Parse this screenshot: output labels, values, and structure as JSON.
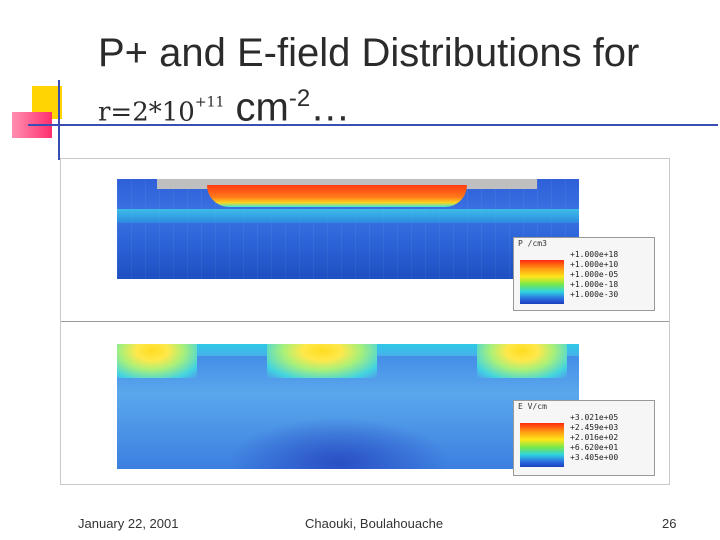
{
  "title": {
    "line1": "P+ and E-field Distributions for",
    "var": "r=2*10",
    "var_exp": "+11",
    "unit": "cm",
    "unit_exp": "-2",
    "ellipsis": "…"
  },
  "figure": {
    "legend_p": {
      "unit": "P /cm3",
      "labels": [
        "+1.000e+18",
        "+1.000e+10",
        "+1.000e-05",
        "+1.000e-18",
        "+1.000e-30"
      ]
    },
    "legend_e": {
      "unit": "E V/cm",
      "labels": [
        "+3.021e+05",
        "+2.459e+03",
        "+2.016e+02",
        "+6.620e+01",
        "+3.405e+00"
      ]
    }
  },
  "footer": {
    "date": "January 22, 2001",
    "authors": "Chaouki, Boulahouache",
    "page": "26"
  },
  "colors": {
    "accent_yellow": "#ffd400",
    "accent_red": "#ff2f6e",
    "accent_blue": "#3a4db3"
  }
}
